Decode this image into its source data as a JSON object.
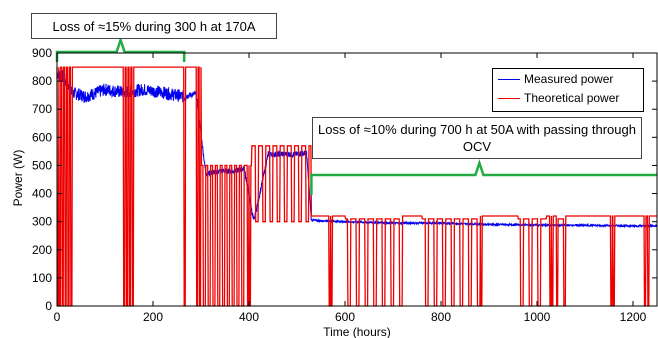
{
  "chart_data": {
    "type": "line",
    "xlabel": "Time (hours)",
    "ylabel": "Power (W)",
    "xlim": [
      0,
      1250
    ],
    "ylim": [
      0,
      900
    ],
    "xticks": [
      0,
      200,
      400,
      600,
      800,
      1000,
      1200
    ],
    "yticks": [
      0,
      100,
      200,
      300,
      400,
      500,
      600,
      700,
      800,
      900
    ],
    "legend_position": "top-right",
    "colors": {
      "measured": "#0000ee",
      "theoretical": "#ee0000",
      "annotation_bracket": "#22aa44"
    },
    "series": [
      {
        "name": "Measured power",
        "x": [
          0,
          15,
          30,
          60,
          100,
          140,
          180,
          220,
          262,
          290,
          310,
          340,
          370,
          390,
          410,
          440,
          470,
          500,
          520,
          530,
          600,
          700,
          800,
          900,
          1000,
          1100,
          1200,
          1250
        ],
        "y": [
          830,
          810,
          760,
          745,
          770,
          760,
          770,
          760,
          745,
          755,
          470,
          480,
          480,
          490,
          300,
          540,
          540,
          540,
          545,
          305,
          300,
          295,
          295,
          290,
          288,
          287,
          285,
          285
        ]
      },
      {
        "name": "Theoretical power",
        "x": [
          0,
          265,
          290,
          310,
          340,
          380,
          400,
          420,
          445,
          470,
          500,
          525,
          530,
          700,
          750,
          800,
          880,
          900,
          1000,
          1050,
          1100,
          1200,
          1250
        ],
        "y": [
          850,
          850,
          850,
          500,
          500,
          500,
          500,
          570,
          570,
          570,
          570,
          570,
          320,
          320,
          320,
          320,
          320,
          320,
          320,
          320,
          320,
          320,
          320
        ]
      }
    ],
    "annotations": [
      {
        "text": "Loss of ≈15% during 300 h at 170A",
        "x_range": [
          0,
          265
        ]
      },
      {
        "text": "Loss of ≈10% during 700 h at 50A with passing through OCV",
        "x_range": [
          530,
          1250
        ]
      }
    ]
  }
}
